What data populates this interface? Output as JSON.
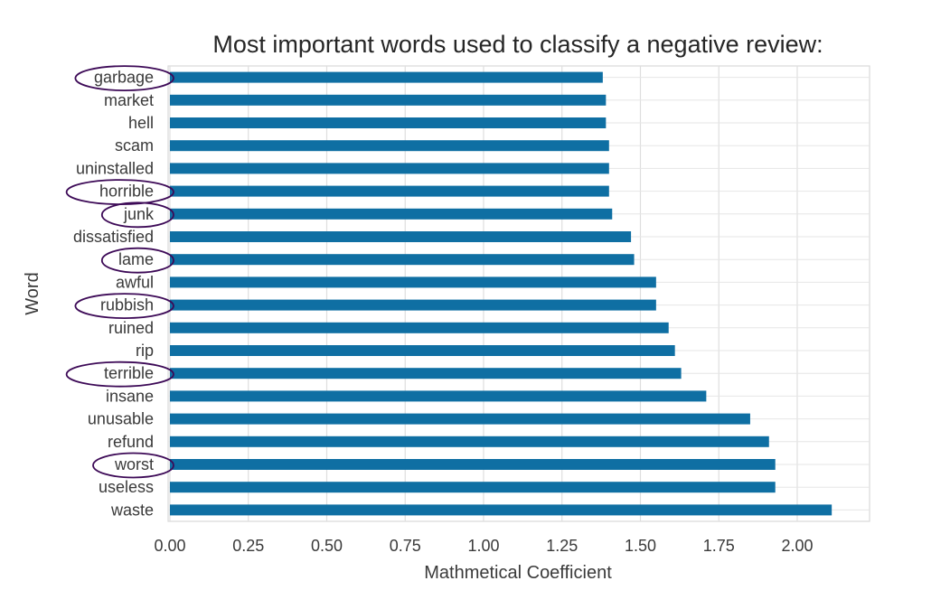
{
  "chart_data": {
    "type": "bar",
    "orientation": "horizontal",
    "title": "Most important words used to classify a negative review:",
    "xlabel": "Mathmetical Coefficient",
    "ylabel": "Word",
    "xlim": [
      0,
      2.25
    ],
    "xticks": [
      "0.00",
      "0.25",
      "0.50",
      "0.75",
      "1.00",
      "1.25",
      "1.50",
      "1.75",
      "2.00"
    ],
    "grid": true,
    "bar_color": "#0f6fa3",
    "highlight_color": "#3d0a57",
    "categories": [
      "garbage",
      "market",
      "hell",
      "scam",
      "uninstalled",
      "horrible",
      "junk",
      "dissatisfied",
      "lame",
      "awful",
      "rubbish",
      "ruined",
      "rip",
      "terrible",
      "insane",
      "unusable",
      "refund",
      "worst",
      "useless",
      "waste"
    ],
    "values": [
      1.38,
      1.39,
      1.39,
      1.4,
      1.4,
      1.4,
      1.41,
      1.47,
      1.48,
      1.55,
      1.55,
      1.59,
      1.61,
      1.63,
      1.71,
      1.85,
      1.91,
      1.93,
      1.93,
      2.11
    ],
    "highlighted": [
      "garbage",
      "horrible",
      "junk",
      "lame",
      "rubbish",
      "terrible",
      "worst"
    ]
  }
}
